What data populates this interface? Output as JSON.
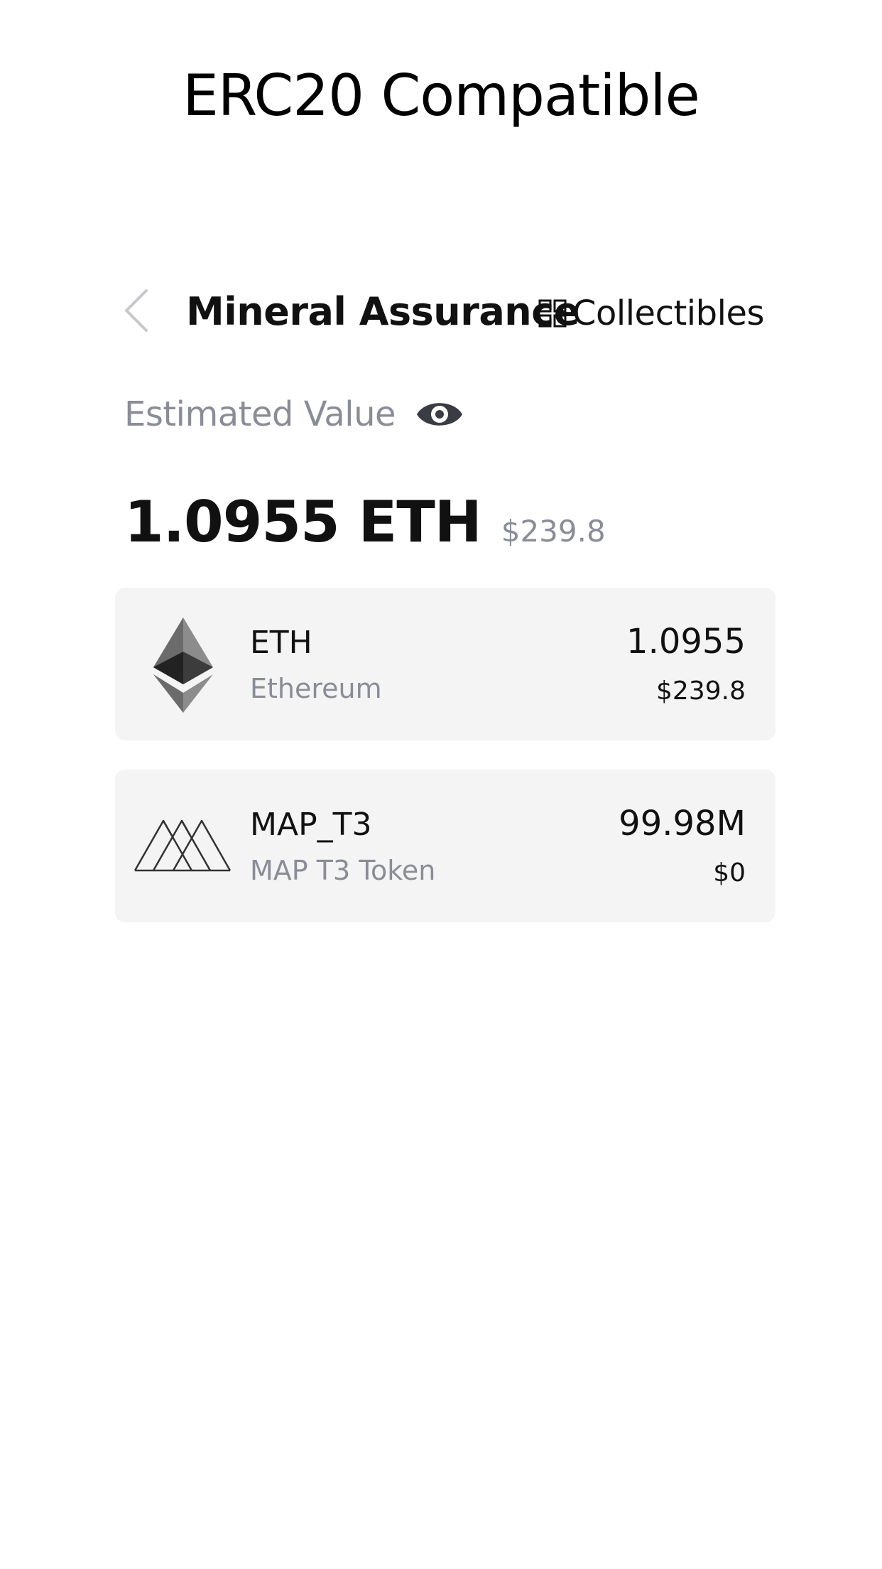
{
  "promo": {
    "title": "ERC20 Compatible"
  },
  "header": {
    "back_icon": "chevron-left-icon",
    "wallet_name": "Mineral Assurance",
    "collectibles_icon": "grid-icon",
    "collectibles_label": "Collectibles"
  },
  "summary": {
    "estimated_label": "Estimated Value",
    "eye_icon": "eye-icon",
    "total_amount": "1.0955 ETH",
    "total_fiat": "$239.8"
  },
  "tokens": [
    {
      "icon": "ethereum-logo-icon",
      "symbol": "ETH",
      "name": "Ethereum",
      "balance": "1.0955",
      "fiat": "$239.8"
    },
    {
      "icon": "map-token-logo-icon",
      "symbol": "MAP_T3",
      "name": "MAP T3 Token",
      "balance": "99.98M",
      "fiat": "$0"
    }
  ],
  "colors": {
    "background": "#ffffff",
    "card_background": "#f4f4f5",
    "secondary_text": "#8a8d96",
    "primary_text": "#111111"
  }
}
